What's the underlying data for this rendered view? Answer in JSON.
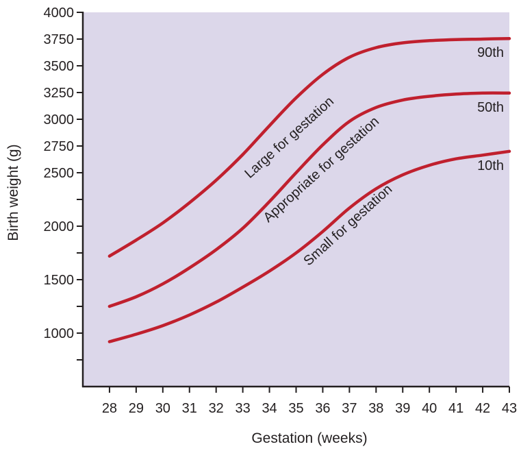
{
  "chart_data": {
    "type": "line",
    "title": "",
    "xlabel": "Gestation (weeks)",
    "ylabel": "Birth weight (g)",
    "xlim": [
      27,
      43
    ],
    "ylim": [
      500,
      4000
    ],
    "x_ticks": [
      28,
      29,
      30,
      31,
      32,
      33,
      34,
      35,
      36,
      37,
      38,
      39,
      40,
      41,
      42,
      43
    ],
    "y_ticks": [
      {
        "value": 4000,
        "label": "4000"
      },
      {
        "value": 3750,
        "label": "3750"
      },
      {
        "value": 3500,
        "label": "3500"
      },
      {
        "value": 3250,
        "label": "3250"
      },
      {
        "value": 3000,
        "label": "3000"
      },
      {
        "value": 2750,
        "label": "2750"
      },
      {
        "value": 2500,
        "label": "2500"
      },
      {
        "value": 2250,
        "label": ""
      },
      {
        "value": 2000,
        "label": "2000"
      },
      {
        "value": 1750,
        "label": ""
      },
      {
        "value": 1500,
        "label": "1500"
      },
      {
        "value": 1250,
        "label": ""
      },
      {
        "value": 1000,
        "label": "1000"
      },
      {
        "value": 750,
        "label": ""
      }
    ],
    "x": [
      28,
      29,
      30,
      31,
      32,
      33,
      34,
      35,
      36,
      37,
      38,
      39,
      40,
      41,
      42,
      43
    ],
    "series": [
      {
        "name": "90th",
        "values": [
          1720,
          1870,
          2030,
          2220,
          2430,
          2670,
          2940,
          3200,
          3420,
          3580,
          3670,
          3715,
          3735,
          3745,
          3750,
          3755
        ]
      },
      {
        "name": "50th",
        "values": [
          1250,
          1340,
          1460,
          1610,
          1780,
          1980,
          2230,
          2500,
          2760,
          2980,
          3110,
          3180,
          3215,
          3235,
          3245,
          3245
        ]
      },
      {
        "name": "10th",
        "values": [
          920,
          990,
          1070,
          1170,
          1290,
          1430,
          1580,
          1750,
          1950,
          2170,
          2350,
          2480,
          2570,
          2630,
          2665,
          2700
        ]
      }
    ],
    "region_labels": [
      {
        "text": "Large for gestation",
        "x": 34.85,
        "y": 2800
      },
      {
        "text": "Appropriate for gestation",
        "x": 36.05,
        "y": 2500
      },
      {
        "text": "Small for gestation",
        "x": 37.05,
        "y": 1980
      }
    ],
    "grid": false,
    "plot_background": "#dcd7ea",
    "curve_color": "#c0202e",
    "axis_color": "#231f20"
  }
}
